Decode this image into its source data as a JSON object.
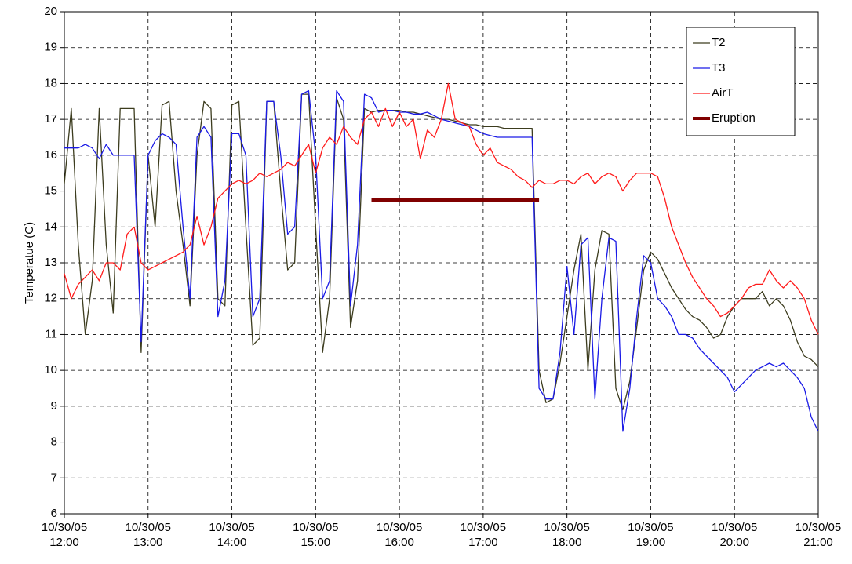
{
  "chart_data": {
    "type": "line",
    "y_label": "Temperatue (C)",
    "x": [
      "10/30/05 12:00",
      "10/30/05 12:05",
      "10/30/05 12:10",
      "10/30/05 12:15",
      "10/30/05 12:20",
      "10/30/05 12:25",
      "10/30/05 12:30",
      "10/30/05 12:35",
      "10/30/05 12:40",
      "10/30/05 12:45",
      "10/30/05 12:50",
      "10/30/05 12:55",
      "10/30/05 13:00",
      "10/30/05 13:05",
      "10/30/05 13:10",
      "10/30/05 13:15",
      "10/30/05 13:20",
      "10/30/05 13:25",
      "10/30/05 13:30",
      "10/30/05 13:35",
      "10/30/05 13:40",
      "10/30/05 13:45",
      "10/30/05 13:50",
      "10/30/05 13:55",
      "10/30/05 14:00",
      "10/30/05 14:05",
      "10/30/05 14:10",
      "10/30/05 14:15",
      "10/30/05 14:20",
      "10/30/05 14:25",
      "10/30/05 14:30",
      "10/30/05 14:35",
      "10/30/05 14:40",
      "10/30/05 14:45",
      "10/30/05 14:50",
      "10/30/05 14:55",
      "10/30/05 15:00",
      "10/30/05 15:05",
      "10/30/05 15:10",
      "10/30/05 15:15",
      "10/30/05 15:20",
      "10/30/05 15:25",
      "10/30/05 15:30",
      "10/30/05 15:35",
      "10/30/05 15:40",
      "10/30/05 15:45",
      "10/30/05 15:50",
      "10/30/05 15:55",
      "10/30/05 16:00",
      "10/30/05 16:05",
      "10/30/05 16:10",
      "10/30/05 16:15",
      "10/30/05 16:20",
      "10/30/05 16:25",
      "10/30/05 16:30",
      "10/30/05 16:35",
      "10/30/05 16:40",
      "10/30/05 16:45",
      "10/30/05 16:50",
      "10/30/05 16:55",
      "10/30/05 17:00",
      "10/30/05 17:05",
      "10/30/05 17:10",
      "10/30/05 17:15",
      "10/30/05 17:20",
      "10/30/05 17:25",
      "10/30/05 17:30",
      "10/30/05 17:35",
      "10/30/05 17:40",
      "10/30/05 17:45",
      "10/30/05 17:50",
      "10/30/05 17:55",
      "10/30/05 18:00",
      "10/30/05 18:05",
      "10/30/05 18:10",
      "10/30/05 18:15",
      "10/30/05 18:20",
      "10/30/05 18:25",
      "10/30/05 18:30",
      "10/30/05 18:35",
      "10/30/05 18:40",
      "10/30/05 18:45",
      "10/30/05 18:50",
      "10/30/05 18:55",
      "10/30/05 19:00",
      "10/30/05 19:05",
      "10/30/05 19:10",
      "10/30/05 19:15",
      "10/30/05 19:20",
      "10/30/05 19:25",
      "10/30/05 19:30",
      "10/30/05 19:35",
      "10/30/05 19:40",
      "10/30/05 19:45",
      "10/30/05 19:50",
      "10/30/05 19:55",
      "10/30/05 20:00",
      "10/30/05 20:05",
      "10/30/05 20:10",
      "10/30/05 20:15",
      "10/30/05 20:20",
      "10/30/05 20:25",
      "10/30/05 20:30",
      "10/30/05 20:35",
      "10/30/05 20:40",
      "10/30/05 20:45",
      "10/30/05 20:50",
      "10/30/05 20:55",
      "10/30/05 21:00"
    ],
    "series": [
      {
        "name": "T2",
        "color": "#3c3c1e",
        "line_width": 1.3,
        "values": [
          15.2,
          17.3,
          13.5,
          11.0,
          12.5,
          17.3,
          13.5,
          11.6,
          17.3,
          17.3,
          17.3,
          10.5,
          16.0,
          14.0,
          17.4,
          17.5,
          15.0,
          13.5,
          11.8,
          16.0,
          17.5,
          17.3,
          12.0,
          11.8,
          17.4,
          17.5,
          14.0,
          10.7,
          10.9,
          17.5,
          17.5,
          15.0,
          12.8,
          13.0,
          17.7,
          17.7,
          14.0,
          10.5,
          12.0,
          17.6,
          17.0,
          11.2,
          12.5,
          17.3,
          17.2,
          17.25,
          17.25,
          17.25,
          17.25,
          17.2,
          17.2,
          17.15,
          17.1,
          17.05,
          17.0,
          17.0,
          16.95,
          16.9,
          16.85,
          16.85,
          16.8,
          16.8,
          16.8,
          16.75,
          16.75,
          16.75,
          16.75,
          16.75,
          10.0,
          9.1,
          9.2,
          10.2,
          11.5,
          12.8,
          13.8,
          10.0,
          12.8,
          13.9,
          13.8,
          9.5,
          8.9,
          9.7,
          11.2,
          12.8,
          13.3,
          13.1,
          12.7,
          12.3,
          12.0,
          11.7,
          11.5,
          11.4,
          11.2,
          10.9,
          11.0,
          11.5,
          11.8,
          12.0,
          12.0,
          12.0,
          12.2,
          11.8,
          12.0,
          11.8,
          11.4,
          10.8,
          10.4,
          10.3,
          10.1
        ]
      },
      {
        "name": "T3",
        "color": "#1a1ae6",
        "line_width": 1.3,
        "values": [
          16.2,
          16.2,
          16.2,
          16.3,
          16.2,
          15.9,
          16.3,
          16.0,
          16.0,
          16.0,
          16.0,
          10.8,
          16.0,
          16.4,
          16.6,
          16.5,
          16.3,
          14.0,
          12.0,
          16.5,
          16.8,
          16.5,
          11.5,
          12.5,
          16.6,
          16.6,
          16.0,
          11.5,
          12.0,
          17.5,
          17.5,
          16.0,
          13.8,
          14.0,
          17.7,
          17.8,
          16.0,
          12.0,
          12.5,
          17.8,
          17.5,
          11.8,
          13.5,
          17.7,
          17.6,
          17.2,
          17.25,
          17.25,
          17.2,
          17.2,
          17.15,
          17.15,
          17.2,
          17.1,
          17.0,
          16.95,
          16.9,
          16.85,
          16.8,
          16.7,
          16.6,
          16.55,
          16.5,
          16.5,
          16.5,
          16.5,
          16.5,
          16.5,
          9.5,
          9.2,
          9.2,
          10.5,
          12.9,
          11.0,
          13.5,
          13.7,
          9.2,
          12.0,
          13.7,
          13.6,
          8.3,
          9.5,
          11.5,
          13.2,
          13.0,
          12.0,
          11.8,
          11.5,
          11.0,
          11.0,
          10.9,
          10.6,
          10.4,
          10.2,
          10.0,
          9.8,
          9.4,
          9.6,
          9.8,
          10.0,
          10.1,
          10.2,
          10.1,
          10.2,
          10.0,
          9.8,
          9.5,
          8.7,
          8.3
        ]
      },
      {
        "name": "AirT",
        "color": "#ff1a1a",
        "line_width": 1.3,
        "values": [
          12.7,
          12.0,
          12.4,
          12.6,
          12.8,
          12.5,
          13.0,
          13.0,
          12.8,
          13.8,
          14.0,
          13.0,
          12.8,
          12.9,
          13.0,
          13.1,
          13.2,
          13.3,
          13.5,
          14.3,
          13.5,
          14.0,
          14.8,
          15.0,
          15.2,
          15.3,
          15.2,
          15.3,
          15.5,
          15.4,
          15.5,
          15.6,
          15.8,
          15.7,
          16.0,
          16.3,
          15.5,
          16.2,
          16.5,
          16.3,
          16.8,
          16.5,
          16.3,
          17.0,
          17.2,
          16.8,
          17.3,
          16.8,
          17.2,
          16.8,
          17.0,
          15.9,
          16.7,
          16.5,
          17.0,
          18.0,
          17.0,
          16.9,
          16.8,
          16.3,
          16.0,
          16.2,
          15.8,
          15.7,
          15.6,
          15.4,
          15.3,
          15.1,
          15.3,
          15.2,
          15.2,
          15.3,
          15.3,
          15.2,
          15.4,
          15.5,
          15.2,
          15.4,
          15.5,
          15.4,
          15.0,
          15.3,
          15.5,
          15.5,
          15.5,
          15.4,
          14.8,
          14.0,
          13.5,
          13.0,
          12.6,
          12.3,
          12.0,
          11.8,
          11.5,
          11.6,
          11.8,
          12.0,
          12.3,
          12.4,
          12.4,
          12.8,
          12.5,
          12.3,
          12.5,
          12.3,
          12.0,
          11.4,
          11.0
        ]
      },
      {
        "name": "Eruption",
        "color": "#800000",
        "line_width": 4,
        "values": [
          null,
          null,
          null,
          null,
          null,
          null,
          null,
          null,
          null,
          null,
          null,
          null,
          null,
          null,
          null,
          null,
          null,
          null,
          null,
          null,
          null,
          null,
          null,
          null,
          null,
          null,
          null,
          null,
          null,
          null,
          null,
          null,
          null,
          null,
          null,
          null,
          null,
          null,
          null,
          null,
          null,
          null,
          null,
          null,
          14.75,
          14.75,
          14.75,
          14.75,
          14.75,
          14.75,
          14.75,
          14.75,
          14.75,
          14.75,
          14.75,
          14.75,
          14.75,
          14.75,
          14.75,
          14.75,
          14.75,
          14.75,
          14.75,
          14.75,
          14.75,
          14.75,
          14.75,
          14.75,
          14.75,
          null,
          null,
          null,
          null,
          null,
          null,
          null,
          null,
          null,
          null,
          null,
          null,
          null,
          null,
          null,
          null,
          null,
          null,
          null,
          null,
          null,
          null,
          null,
          null,
          null,
          null,
          null,
          null,
          null,
          null,
          null,
          null,
          null,
          null,
          null,
          null,
          null,
          null,
          null,
          null
        ]
      }
    ],
    "xlim": [
      "10/30/05 12:00",
      "10/30/05 21:00"
    ],
    "xticks": [
      "10/30/05 12:00",
      "10/30/05 13:00",
      "10/30/05 14:00",
      "10/30/05 15:00",
      "10/30/05 16:00",
      "10/30/05 17:00",
      "10/30/05 18:00",
      "10/30/05 19:00",
      "10/30/05 20:00",
      "10/30/05 21:00"
    ],
    "ylim": [
      6,
      20
    ],
    "yticks": [
      6,
      7,
      8,
      9,
      10,
      11,
      12,
      13,
      14,
      15,
      16,
      17,
      18,
      19,
      20
    ],
    "grid": true,
    "legend": "upper right"
  }
}
